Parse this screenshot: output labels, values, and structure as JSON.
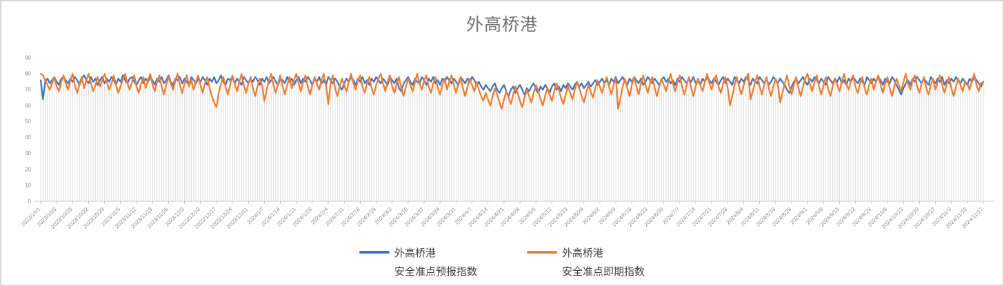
{
  "chart_data": {
    "type": "line",
    "title": "外高桥港",
    "xlabel": "",
    "ylabel": "",
    "ylim": [
      0,
      90
    ],
    "y_ticks": [
      0,
      10,
      20,
      30,
      40,
      50,
      60,
      70,
      80,
      90
    ],
    "grid": "vertical-drop-lines",
    "drop_line_color": "#dcdcdc",
    "axis_line_color": "#c9c9c9",
    "tick_text_color": "#8c8c8c",
    "legend_position": "bottom",
    "x_tick_interval_days": 7,
    "x_tick_labels": [
      "2023/10/1",
      "2023/10/8",
      "2023/10/15",
      "2023/10/22",
      "2023/10/29",
      "2023/11/5",
      "2023/11/12",
      "2023/11/19",
      "2023/11/26",
      "2023/12/3",
      "2023/12/10",
      "2023/12/17",
      "2023/12/24",
      "2023/12/31",
      "2024/1/7",
      "2024/1/14",
      "2024/1/21",
      "2024/1/28",
      "2024/2/4",
      "2024/2/11",
      "2024/2/18",
      "2024/2/25",
      "2024/3/3",
      "2024/3/10",
      "2024/3/17",
      "2024/3/24",
      "2024/3/31",
      "2024/4/7",
      "2024/4/14",
      "2024/4/21",
      "2024/4/28",
      "2024/5/5",
      "2024/5/12",
      "2024/5/19",
      "2024/5/26",
      "2024/6/2",
      "2024/6/9",
      "2024/6/16",
      "2024/6/23",
      "2024/6/30",
      "2024/7/7",
      "2024/7/14",
      "2024/7/21",
      "2024/7/28",
      "2024/8/4",
      "2024/8/11",
      "2024/8/18",
      "2024/8/25",
      "2024/9/1",
      "2024/9/8",
      "2024/9/15",
      "2024/9/22",
      "2024/9/29",
      "2024/10/6",
      "2024/10/13",
      "2024/10/20",
      "2024/10/27",
      "2024/11/3",
      "2024/11/10",
      "2024/11/17"
    ],
    "series": [
      {
        "name": "外高桥港 安全准点预报指数",
        "color": "#4472C4",
        "values": [
          76,
          64,
          75,
          77,
          74,
          76,
          78,
          75,
          73,
          77,
          78,
          76,
          74,
          77,
          75,
          78,
          76,
          73,
          77,
          79,
          76,
          74,
          78,
          75,
          77,
          73,
          76,
          78,
          74,
          77,
          75,
          78,
          76,
          73,
          77,
          75,
          79,
          76,
          74,
          77,
          78,
          75,
          73,
          76,
          78,
          74,
          77,
          75,
          78,
          76,
          73,
          77,
          75,
          78,
          74,
          76,
          79,
          75,
          73,
          77,
          76,
          78,
          74,
          77,
          75,
          73,
          78,
          76,
          74,
          77,
          75,
          78,
          76,
          73,
          77,
          75,
          78,
          74,
          76,
          79,
          75,
          73,
          77,
          76,
          78,
          74,
          77,
          75,
          73,
          78,
          76,
          74,
          77,
          75,
          78,
          76,
          73,
          77,
          75,
          78,
          74,
          76,
          78,
          75,
          73,
          77,
          76,
          74,
          78,
          75,
          77,
          73,
          76,
          78,
          74,
          77,
          75,
          78,
          76,
          73,
          77,
          75,
          78,
          74,
          76,
          73,
          78,
          76,
          74,
          77,
          75,
          72,
          70,
          74,
          77,
          75,
          78,
          76,
          73,
          77,
          75,
          78,
          74,
          76,
          73,
          77,
          75,
          78,
          76,
          74,
          77,
          75,
          73,
          78,
          76,
          74,
          77,
          71,
          69,
          74,
          76,
          78,
          75,
          73,
          77,
          75,
          74,
          78,
          76,
          73,
          77,
          75,
          78,
          74,
          76,
          73,
          77,
          75,
          78,
          76,
          74,
          77,
          75,
          73,
          78,
          76,
          74,
          77,
          75,
          78,
          76,
          73,
          75,
          72,
          70,
          73,
          71,
          69,
          72,
          74,
          70,
          68,
          71,
          73,
          69,
          66,
          70,
          72,
          68,
          71,
          73,
          70,
          67,
          71,
          69,
          72,
          74,
          70,
          68,
          72,
          70,
          73,
          71,
          68,
          72,
          74,
          70,
          72,
          69,
          73,
          71,
          74,
          72,
          70,
          73,
          75,
          72,
          74,
          71,
          73,
          75,
          72,
          74,
          76,
          73,
          75,
          77,
          74,
          76,
          73,
          77,
          75,
          78,
          74,
          76,
          78,
          75,
          73,
          77,
          75,
          78,
          76,
          74,
          77,
          73,
          75,
          78,
          76,
          74,
          77,
          75,
          73,
          76,
          78,
          75,
          77,
          74,
          76,
          73,
          77,
          75,
          78,
          76,
          74,
          77,
          75,
          78,
          74,
          76,
          73,
          77,
          75,
          78,
          76,
          74,
          77,
          75,
          73,
          76,
          78,
          74,
          77,
          75,
          73,
          78,
          76,
          74,
          77,
          75,
          78,
          76,
          73,
          77,
          75,
          74,
          78,
          76,
          74,
          77,
          73,
          75,
          78,
          76,
          74,
          77,
          75,
          73,
          70,
          68,
          72,
          75,
          77,
          74,
          76,
          78,
          75,
          73,
          77,
          75,
          78,
          76,
          74,
          77,
          75,
          73,
          78,
          76,
          74,
          77,
          75,
          78,
          74,
          76,
          73,
          77,
          75,
          78,
          76,
          74,
          77,
          75,
          73,
          78,
          76,
          74,
          77,
          75,
          78,
          76,
          73,
          77,
          75,
          74,
          78,
          76,
          73,
          70,
          67,
          71,
          74,
          76,
          73,
          77,
          75,
          78,
          76,
          74,
          77,
          75,
          73,
          78,
          76,
          74,
          77,
          75,
          78,
          73,
          76,
          74,
          77,
          75,
          78,
          76,
          74,
          77,
          75,
          73,
          77,
          75,
          78,
          76,
          74,
          72,
          75
        ]
      },
      {
        "name": "外高桥港 安全准点即期指数",
        "color": "#ED7D31",
        "values": [
          80,
          79,
          76,
          73,
          70,
          74,
          78,
          72,
          69,
          75,
          79,
          74,
          70,
          76,
          80,
          73,
          68,
          74,
          78,
          71,
          76,
          80,
          74,
          69,
          73,
          78,
          72,
          76,
          80,
          75,
          70,
          74,
          79,
          73,
          68,
          72,
          77,
          80,
          74,
          70,
          75,
          79,
          72,
          68,
          74,
          78,
          71,
          76,
          80,
          73,
          69,
          75,
          79,
          72,
          67,
          73,
          78,
          74,
          70,
          76,
          80,
          73,
          68,
          74,
          79,
          72,
          76,
          70,
          75,
          79,
          73,
          68,
          74,
          78,
          71,
          66,
          62,
          59,
          68,
          74,
          78,
          72,
          67,
          73,
          79,
          74,
          69,
          75,
          80,
          73,
          68,
          74,
          78,
          71,
          66,
          72,
          77,
          73,
          63,
          70,
          76,
          80,
          73,
          68,
          74,
          79,
          72,
          67,
          73,
          78,
          71,
          76,
          80,
          74,
          69,
          75,
          79,
          72,
          67,
          73,
          78,
          74,
          70,
          76,
          80,
          73,
          61,
          74,
          79,
          71,
          66,
          72,
          77,
          73,
          69,
          75,
          80,
          74,
          70,
          76,
          79,
          72,
          68,
          74,
          78,
          71,
          67,
          73,
          77,
          80,
          74,
          69,
          75,
          79,
          72,
          68,
          74,
          78,
          71,
          66,
          72,
          77,
          73,
          69,
          75,
          80,
          74,
          70,
          76,
          79,
          72,
          68,
          74,
          78,
          71,
          67,
          73,
          77,
          70,
          75,
          79,
          73,
          68,
          74,
          78,
          71,
          66,
          72,
          77,
          73,
          69,
          75,
          70,
          66,
          63,
          68,
          64,
          60,
          66,
          71,
          67,
          62,
          58,
          64,
          69,
          65,
          61,
          67,
          72,
          68,
          63,
          59,
          65,
          70,
          66,
          62,
          68,
          73,
          69,
          64,
          60,
          66,
          71,
          67,
          63,
          69,
          74,
          70,
          65,
          61,
          67,
          72,
          68,
          64,
          70,
          75,
          71,
          66,
          62,
          68,
          73,
          69,
          65,
          71,
          76,
          72,
          68,
          74,
          78,
          72,
          67,
          73,
          77,
          58,
          65,
          72,
          77,
          71,
          66,
          73,
          78,
          72,
          67,
          74,
          79,
          73,
          68,
          74,
          78,
          71,
          66,
          72,
          77,
          73,
          69,
          75,
          80,
          74,
          69,
          75,
          79,
          72,
          67,
          73,
          78,
          71,
          66,
          72,
          77,
          73,
          69,
          75,
          80,
          74,
          70,
          76,
          79,
          72,
          68,
          74,
          78,
          71,
          60,
          66,
          73,
          78,
          72,
          67,
          73,
          77,
          80,
          64,
          69,
          75,
          79,
          72,
          67,
          73,
          78,
          71,
          66,
          72,
          77,
          73,
          62,
          68,
          74,
          79,
          72,
          67,
          73,
          78,
          71,
          66,
          72,
          77,
          80,
          74,
          69,
          75,
          79,
          72,
          67,
          73,
          78,
          71,
          66,
          72,
          77,
          73,
          69,
          75,
          80,
          74,
          70,
          76,
          79,
          72,
          68,
          74,
          78,
          71,
          67,
          73,
          77,
          70,
          75,
          79,
          73,
          68,
          74,
          78,
          71,
          66,
          72,
          77,
          73,
          69,
          75,
          80,
          74,
          70,
          76,
          79,
          72,
          68,
          74,
          78,
          71,
          67,
          73,
          77,
          70,
          75,
          79,
          73,
          68,
          74,
          78,
          71,
          66,
          72,
          77,
          73,
          69,
          75,
          74,
          70,
          76,
          80,
          73,
          69,
          74,
          75
        ]
      }
    ]
  },
  "legend": {
    "items": [
      {
        "label_line1": "外高桥港",
        "label_line2": "安全准点预报指数",
        "color": "#4472C4"
      },
      {
        "label_line1": "外高桥港",
        "label_line2": "安全准点即期指数",
        "color": "#ED7D31"
      }
    ]
  }
}
